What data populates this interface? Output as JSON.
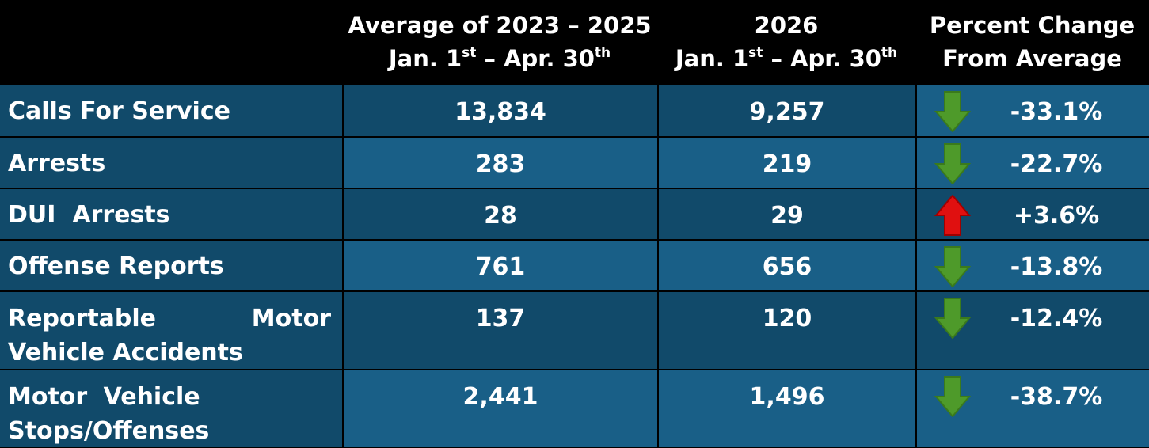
{
  "headers": {
    "col1_line1": "Average of 2023 – 2025",
    "col1_line2_a": "Jan. 1",
    "col1_line2_sup1": "st",
    "col1_line2_b": " – Apr. 30",
    "col1_line2_sup2": "th",
    "col2_line1": "2026",
    "col2_line2_a": "Jan. 1",
    "col2_line2_sup1": "st",
    "col2_line2_b": " – Apr. 30",
    "col2_line2_sup2": "th",
    "col3_line1": "Percent Change",
    "col3_line2": "From Average"
  },
  "rows": [
    {
      "label": "Calls For Service",
      "average": "13,834",
      "current": "9,257",
      "direction": "down",
      "change": "-33.1%"
    },
    {
      "label": "Arrests",
      "average": "283",
      "current": "219",
      "direction": "down",
      "change": "-22.7%"
    },
    {
      "label": "DUI  Arrests",
      "average": "28",
      "current": "29",
      "direction": "up",
      "change": "+3.6%"
    },
    {
      "label": "Offense Reports",
      "average": "761",
      "current": "656",
      "direction": "down",
      "change": "-13.8%"
    },
    {
      "label": "Reportable Motor Vehicle Accidents",
      "average": "137",
      "current": "120",
      "direction": "down",
      "change": "-12.4%"
    },
    {
      "label": "Motor Vehicle Stops/Offenses",
      "average": "2,441",
      "current": "1,496",
      "direction": "down",
      "change": "-38.7%"
    }
  ],
  "icons": {
    "down": "green-down-arrow-icon",
    "up": "red-up-arrow-icon"
  },
  "colors": {
    "header_bg": "#000000",
    "row_dark": "#114a6a",
    "row_light": "#195f87",
    "down_arrow": "#4e9a2a",
    "up_arrow": "#e01010"
  }
}
